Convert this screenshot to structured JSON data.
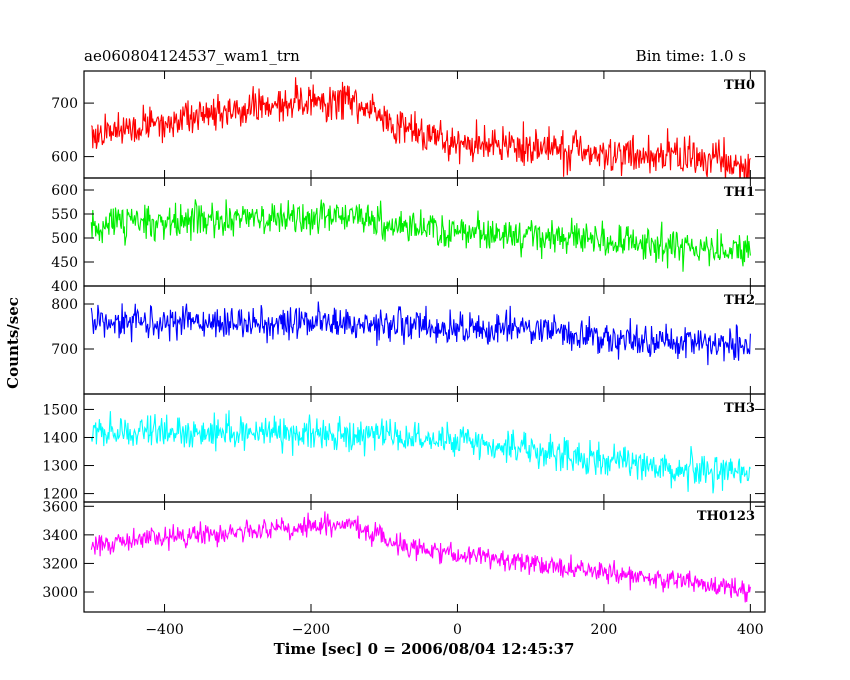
{
  "header": {
    "title": "ae060804124537_wam1_trn",
    "bin_time": "Bin time: 1.0 s"
  },
  "chart_data": {
    "type": "line",
    "xlabel": "Time [sec] 0 = 2006/08/04 12:45:37",
    "ylabel": "Counts/sec",
    "xlim": [
      -510,
      420
    ],
    "x_range": [
      -500,
      400
    ],
    "x_step": 1,
    "x_ticks": [
      -400,
      -200,
      0,
      200,
      400
    ],
    "panels": [
      {
        "name": "TH0",
        "color": "#ff0000",
        "ylim": [
          560,
          760
        ],
        "y_ticks": [
          600,
          700
        ],
        "trend_x": [
          -500,
          -400,
          -300,
          -200,
          -150,
          -100,
          -50,
          0,
          100,
          200,
          300,
          400
        ],
        "trend_y": [
          640,
          665,
          690,
          705,
          708,
          670,
          640,
          625,
          615,
          605,
          600,
          580
        ],
        "noise": 30
      },
      {
        "name": "TH1",
        "color": "#00ee00",
        "ylim": [
          400,
          625
        ],
        "y_ticks": [
          400,
          450,
          500,
          550,
          600
        ],
        "trend_x": [
          -500,
          -400,
          -300,
          -200,
          -150,
          -100,
          0,
          100,
          200,
          300,
          400
        ],
        "trend_y": [
          530,
          535,
          540,
          545,
          545,
          530,
          515,
          505,
          495,
          485,
          470
        ],
        "noise": 30
      },
      {
        "name": "TH2",
        "color": "#0000ff",
        "ylim": [
          600,
          840
        ],
        "y_ticks": [
          700,
          800
        ],
        "trend_x": [
          -500,
          -400,
          -300,
          -200,
          -100,
          0,
          100,
          200,
          300,
          400
        ],
        "trend_y": [
          762,
          760,
          758,
          758,
          755,
          750,
          740,
          725,
          715,
          700
        ],
        "noise": 32
      },
      {
        "name": "TH3",
        "color": "#00ffff",
        "ylim": [
          1170,
          1555
        ],
        "y_ticks": [
          1200,
          1300,
          1400,
          1500
        ],
        "trend_x": [
          -500,
          -400,
          -300,
          -200,
          -100,
          0,
          100,
          200,
          300,
          400
        ],
        "trend_y": [
          1420,
          1418,
          1415,
          1410,
          1405,
          1390,
          1350,
          1320,
          1290,
          1270
        ],
        "noise": 48
      },
      {
        "name": "TH0123",
        "color": "#ff00ff",
        "ylim": [
          2860,
          3630
        ],
        "y_ticks": [
          3000,
          3200,
          3400,
          3600
        ],
        "trend_x": [
          -500,
          -400,
          -300,
          -200,
          -150,
          -100,
          -50,
          0,
          100,
          200,
          300,
          400
        ],
        "trend_y": [
          3340,
          3380,
          3420,
          3460,
          3470,
          3370,
          3300,
          3260,
          3200,
          3140,
          3080,
          3000
        ],
        "noise": 65
      }
    ]
  }
}
